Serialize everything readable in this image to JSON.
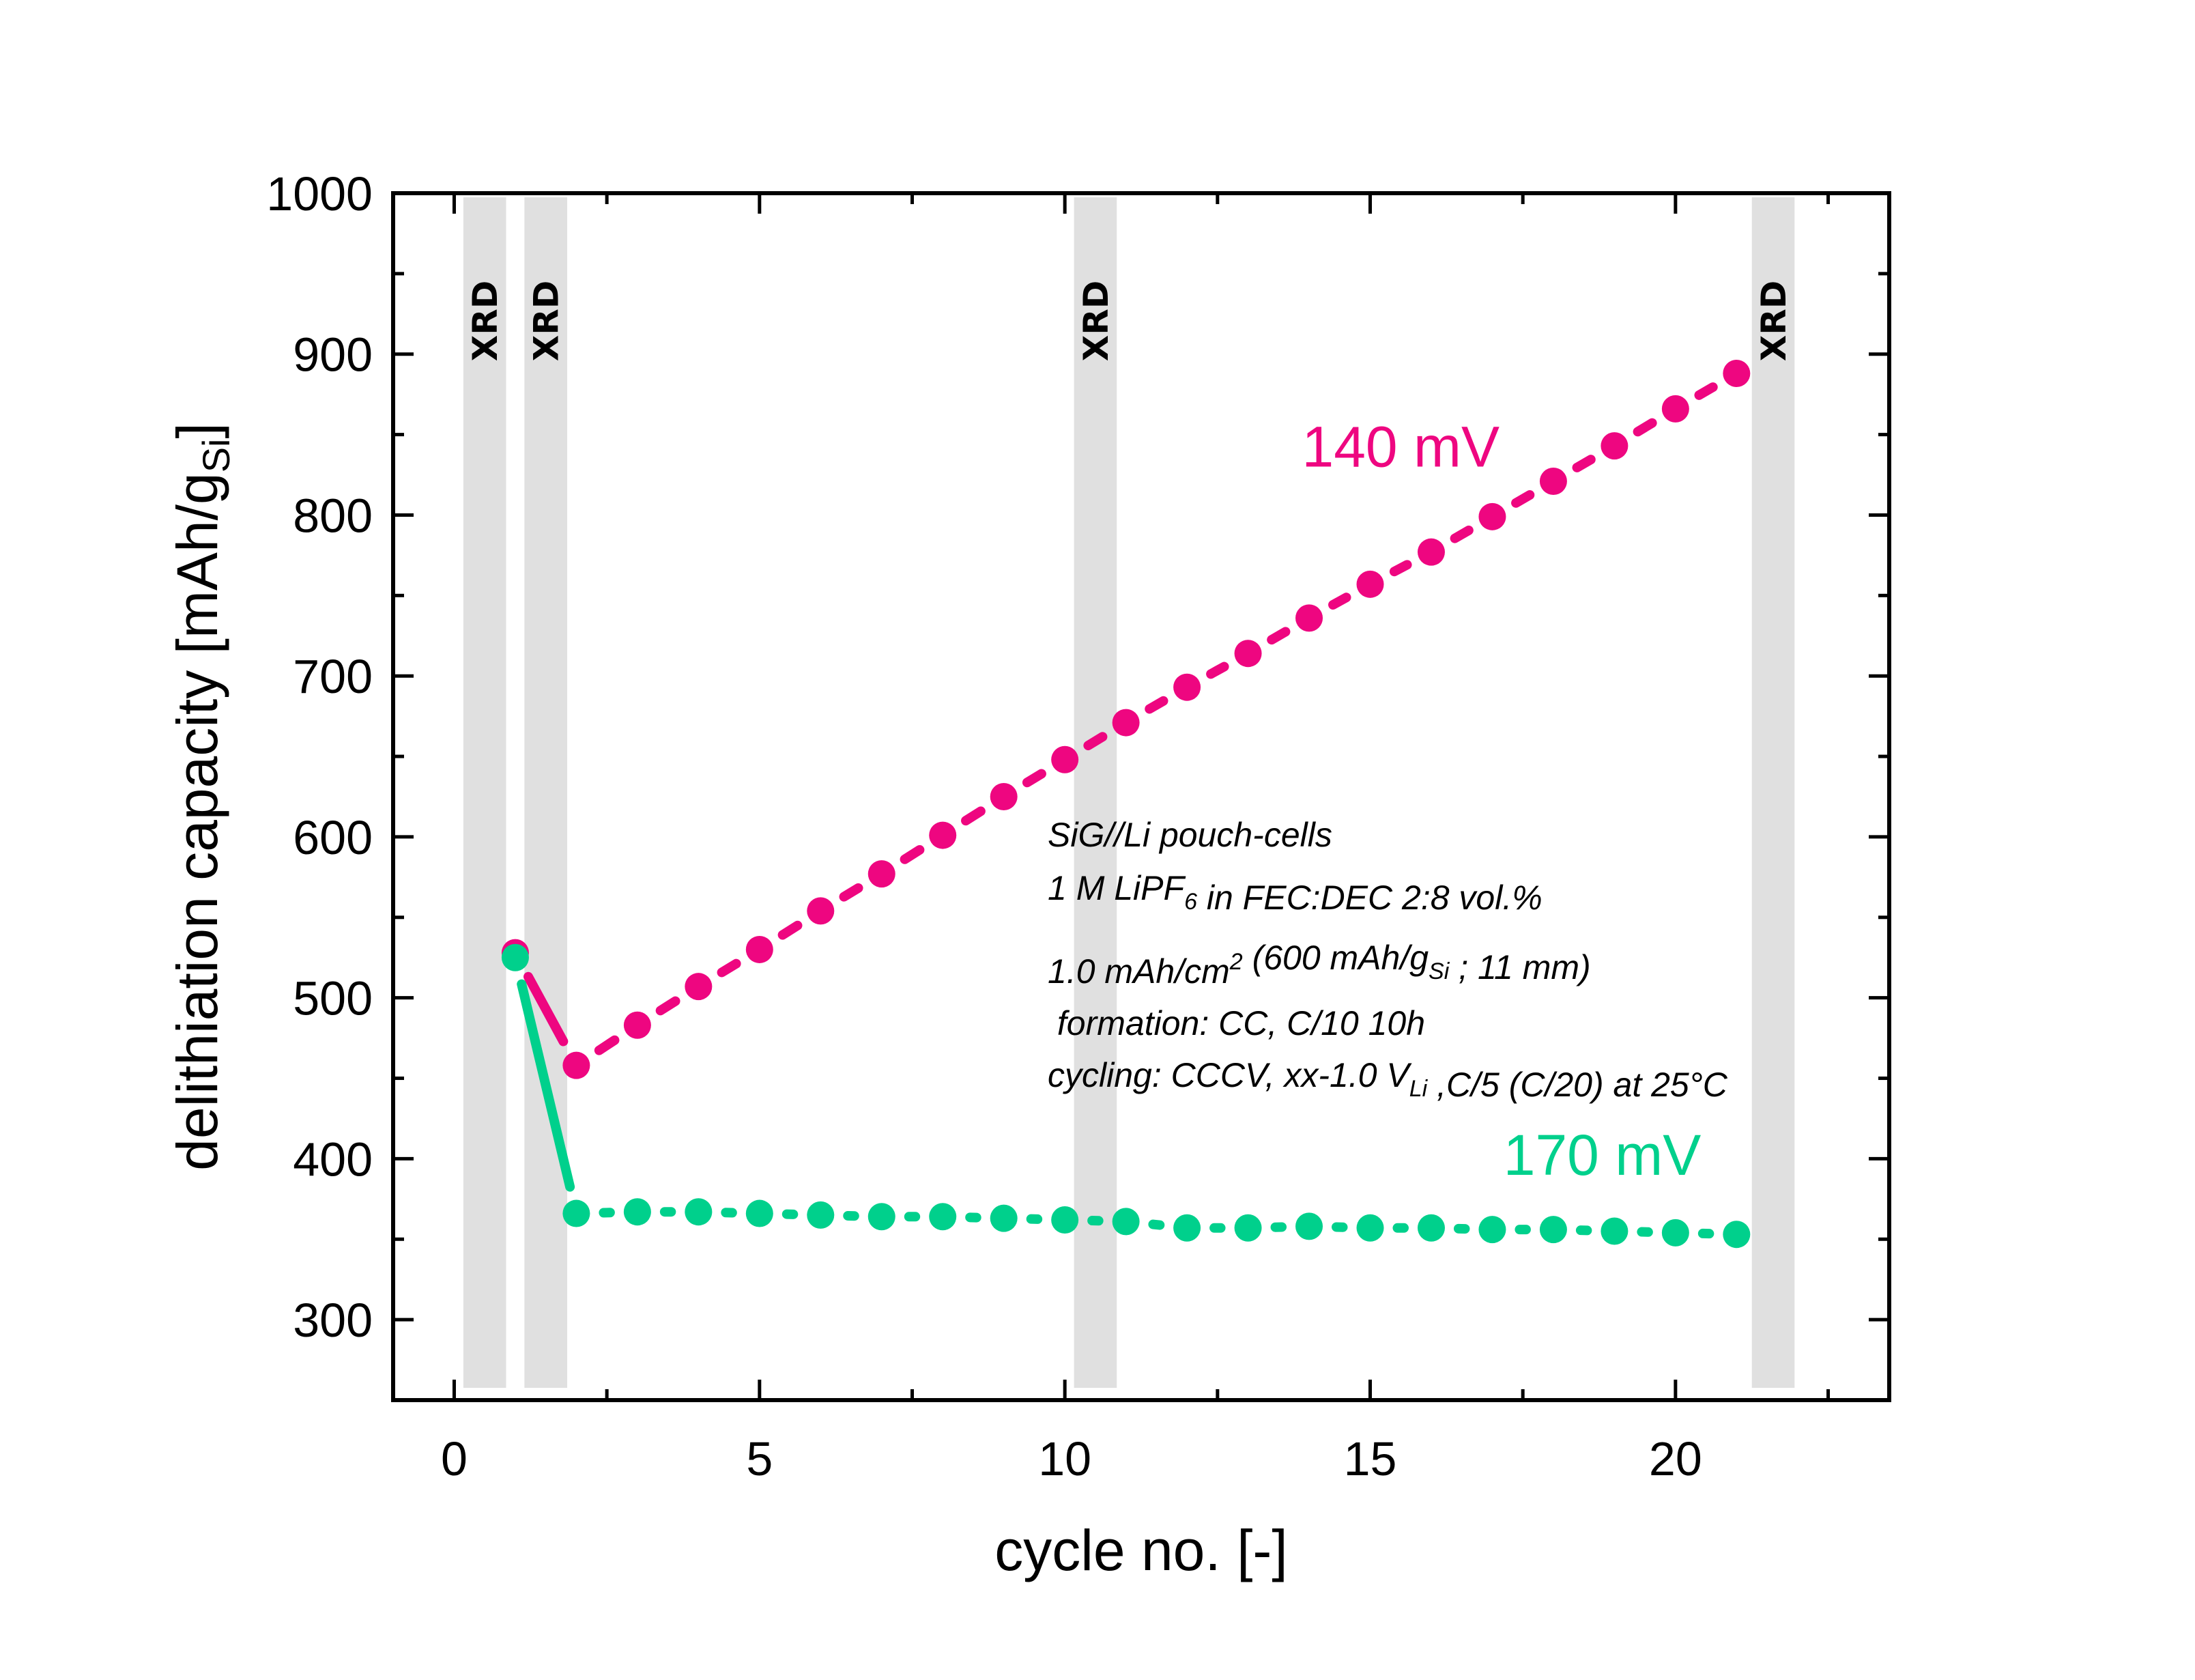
{
  "chart_data": {
    "type": "line",
    "title": "",
    "xlabel": "cycle no. [-]",
    "ylabel": {
      "main": "delithiation capacity [mAh/g",
      "sub": "Si",
      "end": "]"
    },
    "xlim": [
      -1,
      23.5
    ],
    "ylim": [
      250,
      1000
    ],
    "xticks": [
      0,
      5,
      10,
      15,
      20
    ],
    "xticks_minor": [
      2.5,
      7.5,
      12.5,
      17.5,
      22.5
    ],
    "yticks": [
      300,
      400,
      500,
      600,
      700,
      800,
      900,
      1000
    ],
    "yticks_minor": [
      350,
      450,
      550,
      650,
      750,
      850,
      950
    ],
    "grid": false,
    "colors": {
      "pink": "#EE0680",
      "green": "#00D08C",
      "band": "#E0E0E0",
      "axis": "#000000"
    },
    "x": [
      1,
      2,
      3,
      4,
      5,
      6,
      7,
      8,
      9,
      10,
      11,
      12,
      13,
      14,
      15,
      16,
      17,
      18,
      19,
      20,
      21
    ],
    "series": [
      {
        "name": "140 mV",
        "color": "#EE0680",
        "values": [
          528,
          458,
          483,
          507,
          530,
          554,
          577,
          601,
          625,
          648,
          671,
          693,
          714,
          736,
          757,
          777,
          799,
          821,
          843,
          866,
          888
        ]
      },
      {
        "name": "170 mV",
        "color": "#00D08C",
        "values": [
          525,
          366,
          367,
          367,
          366,
          365,
          364,
          364,
          363,
          362,
          361,
          357,
          357,
          358,
          357,
          357,
          356,
          356,
          355,
          354,
          353
        ]
      }
    ],
    "bands": [
      {
        "label": "XRD",
        "x0": 0.15,
        "x1": 0.85
      },
      {
        "label": "XRD",
        "x0": 1.15,
        "x1": 1.85
      },
      {
        "label": "XRD",
        "x0": 10.15,
        "x1": 10.85
      },
      {
        "label": "XRD",
        "x0": 21.25,
        "x1": 21.95
      }
    ],
    "annotations": {
      "series_labels": [
        {
          "text": "140 mV",
          "series": 0,
          "x": 15.5,
          "y": 830
        },
        {
          "text": "170 mV",
          "series": 1,
          "x": 18.8,
          "y": 390
        }
      ],
      "note_lines": [
        {
          "parts": [
            {
              "t": "SiG//Li pouch-cells"
            }
          ]
        },
        {
          "parts": [
            {
              "t": "1 M LiPF"
            },
            {
              "t": "6",
              "sub": true
            },
            {
              "t": " in FEC:DEC 2:8 vol.%"
            }
          ]
        },
        {
          "parts": [
            {
              "t": "1.0 mAh/cm"
            },
            {
              "t": "2",
              "sup": true
            },
            {
              "t": " (600 mAh/g"
            },
            {
              "t": "Si",
              "sub": true
            },
            {
              "t": " ; 11 mm)"
            }
          ]
        },
        {
          "parts": [
            {
              "t": " formation: CC, C/10 10h"
            }
          ]
        },
        {
          "parts": [
            {
              "t": "cycling: CCCV, xx-1.0 V"
            },
            {
              "t": "Li",
              "sub": true
            },
            {
              "t": " ,C/5 (C/20) at 25°C"
            }
          ]
        }
      ]
    }
  }
}
